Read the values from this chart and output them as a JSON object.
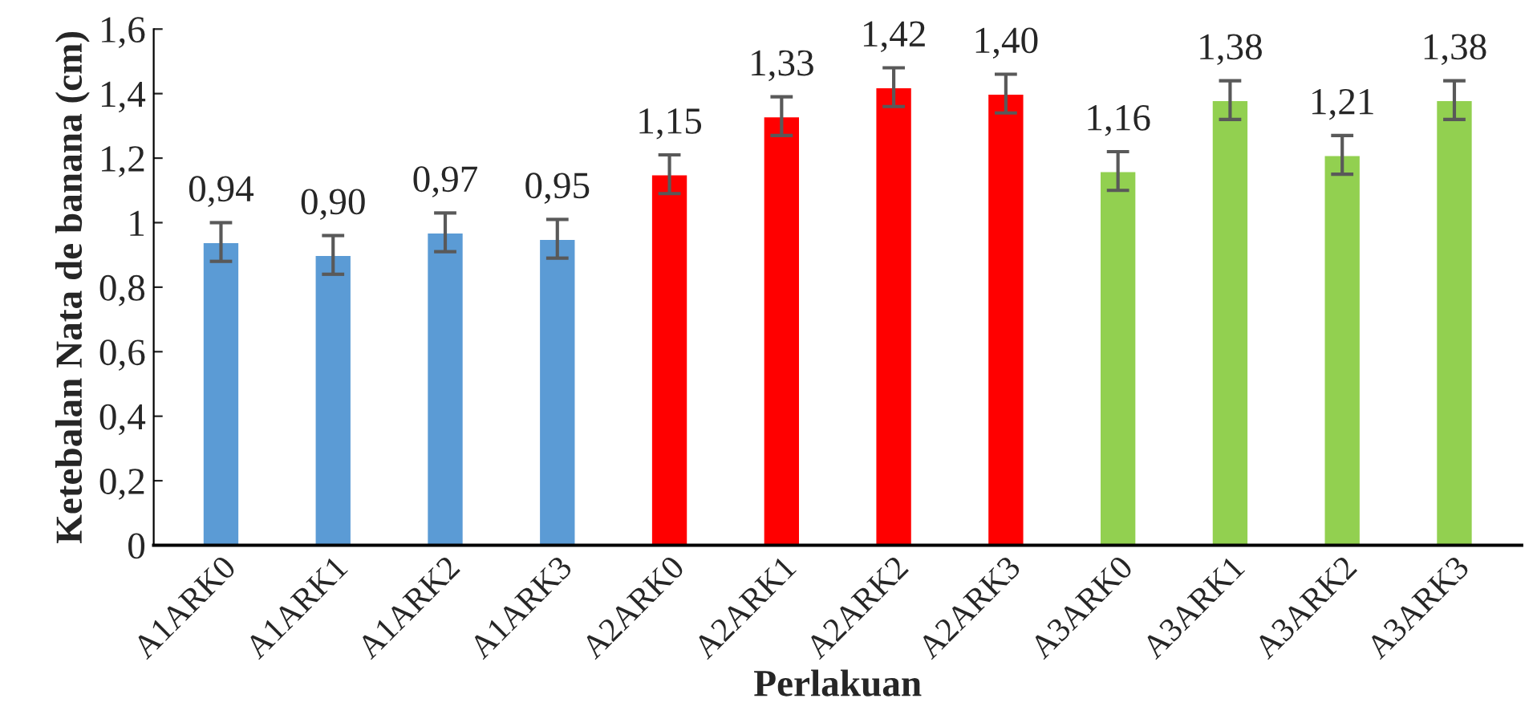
{
  "chart_data": {
    "type": "bar",
    "xlabel": "Perlakuan",
    "ylabel": "Ketebalan Nata de banana (cm)",
    "categories": [
      "A1ARK0",
      "A1ARK1",
      "A1ARK2",
      "A1ARK3",
      "A2ARK0",
      "A2ARK1",
      "A2ARK2",
      "A2ARK3",
      "A3ARK0",
      "A3ARK1",
      "A3ARK2",
      "A3ARK3"
    ],
    "values": [
      0.94,
      0.9,
      0.97,
      0.95,
      1.15,
      1.33,
      1.42,
      1.4,
      1.16,
      1.38,
      1.21,
      1.38
    ],
    "value_labels": [
      "0,94",
      "0,90",
      "0,97",
      "0,95",
      "1,15",
      "1,33",
      "1,42",
      "1,40",
      "1,16",
      "1,38",
      "1,21",
      "1,38"
    ],
    "errors": [
      0.06,
      0.06,
      0.06,
      0.06,
      0.06,
      0.06,
      0.06,
      0.06,
      0.06,
      0.06,
      0.06,
      0.06
    ],
    "colors": [
      "#5b9bd5",
      "#5b9bd5",
      "#5b9bd5",
      "#5b9bd5",
      "#ff0000",
      "#ff0000",
      "#ff0000",
      "#ff0000",
      "#92d050",
      "#92d050",
      "#92d050",
      "#92d050"
    ],
    "ylim": [
      0,
      1.6
    ],
    "yticks": [
      0,
      {
        "value": 0.2,
        "label": "0,2"
      },
      {
        "value": 0.4,
        "label": "0,4"
      },
      {
        "value": 0.6,
        "label": "0,6"
      },
      {
        "value": 0.8,
        "label": "0,8"
      },
      1,
      {
        "value": 1.2,
        "label": "1,2"
      },
      {
        "value": 1.4,
        "label": "1,4"
      },
      {
        "value": 1.6,
        "label": "1,6"
      }
    ],
    "grid": false,
    "legend": false
  }
}
